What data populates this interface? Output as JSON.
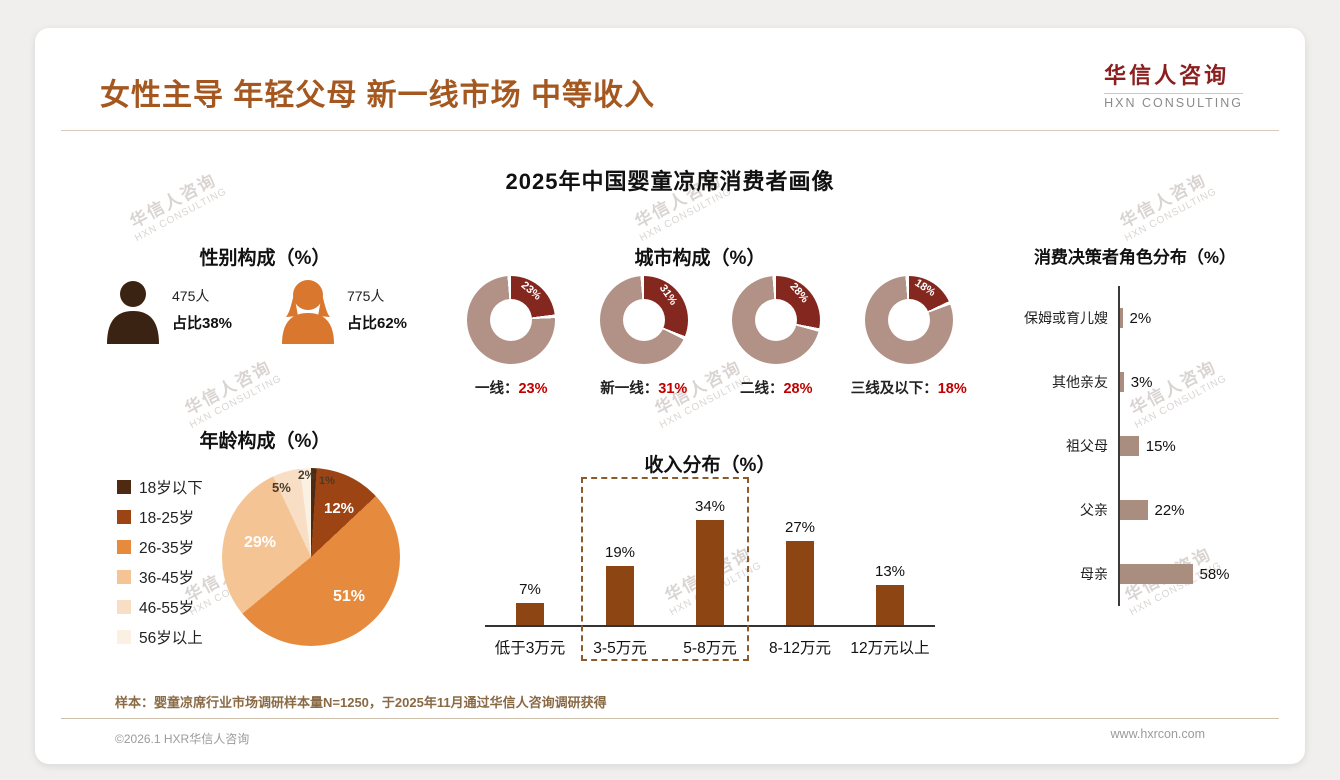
{
  "header": {
    "title": "女性主导 年轻父母 新一线市场 中等收入",
    "logo": {
      "name": "华信人咨询",
      "tagline": "HXN CONSULTING"
    }
  },
  "subtitle": "2025年中国婴童凉席消费者画像",
  "watermark": {
    "line1": "华信人咨询",
    "line2": "HXN CONSULTING"
  },
  "sections": {
    "gender": {
      "title": "性别构成（%）",
      "male": {
        "count": "475人",
        "share": "占比38%"
      },
      "female": {
        "count": "775人",
        "share": "占比62%"
      }
    },
    "city": {
      "title": "城市构成（%）"
    },
    "age": {
      "title": "年龄构成（%）"
    },
    "income": {
      "title": "收入分布（%）"
    },
    "decision": {
      "title": "消费决策者角色分布（%）"
    }
  },
  "chart_data": [
    {
      "id": "city-donuts",
      "type": "pie",
      "variant": "donut",
      "title": "城市构成（%）",
      "categories": [
        "一线",
        "新一线",
        "二线",
        "三线及以下"
      ],
      "values": [
        23,
        31,
        28,
        18
      ],
      "value_labels": [
        "23%",
        "31%",
        "28%",
        "18%"
      ],
      "caption_separator": "：",
      "colors": {
        "slice": "#84281F",
        "ring": "#B29287"
      }
    },
    {
      "id": "age-pie",
      "type": "pie",
      "title": "年龄构成（%）",
      "categories": [
        "18岁以下",
        "18-25岁",
        "26-35岁",
        "36-45岁",
        "46-55岁",
        "56岁以上"
      ],
      "values": [
        1,
        12,
        51,
        29,
        5,
        2
      ],
      "value_labels": [
        "1%",
        "12%",
        "51%",
        "29%",
        "5%",
        "2%"
      ],
      "colors": [
        "#4F2A12",
        "#9C4414",
        "#E68A3E",
        "#F4C494",
        "#F7DEC4",
        "#FBF1E3"
      ],
      "legend_position": "left"
    },
    {
      "id": "income-bars",
      "type": "bar",
      "title": "收入分布（%）",
      "categories": [
        "低于3万元",
        "3-5万元",
        "5-8万元",
        "8-12万元",
        "12万元以上"
      ],
      "values": [
        7,
        19,
        34,
        27,
        13
      ],
      "value_labels": [
        "7%",
        "19%",
        "34%",
        "27%",
        "13%"
      ],
      "bar_color": "#8C4513",
      "highlighted_categories": [
        "3-5万元",
        "5-8万元"
      ],
      "ylim": [
        0,
        40
      ]
    },
    {
      "id": "decision-bars",
      "type": "bar",
      "orientation": "horizontal",
      "title": "消费决策者角色分布（%）",
      "categories": [
        "保姆或育儿嫂",
        "其他亲友",
        "祖父母",
        "父亲",
        "母亲"
      ],
      "values": [
        2,
        3,
        15,
        22,
        58
      ],
      "value_labels": [
        "2%",
        "3%",
        "15%",
        "22%",
        "58%"
      ],
      "bar_color": "#A98D7F",
      "xlim": [
        0,
        60
      ]
    }
  ],
  "footnote": "样本：婴童凉席行业市场调研样本量N=1250，于2025年11月通过华信人咨询调研获得",
  "footer": {
    "copyright": "©2026.1 HXR华信人咨询",
    "website": "www.hxrcon.com"
  },
  "colors": {
    "accent_title": "#A4581F",
    "logo_red": "#8B1E1E",
    "value_red": "#C00000",
    "male_icon": "#3B2313",
    "female_icon": "#D9772F"
  }
}
